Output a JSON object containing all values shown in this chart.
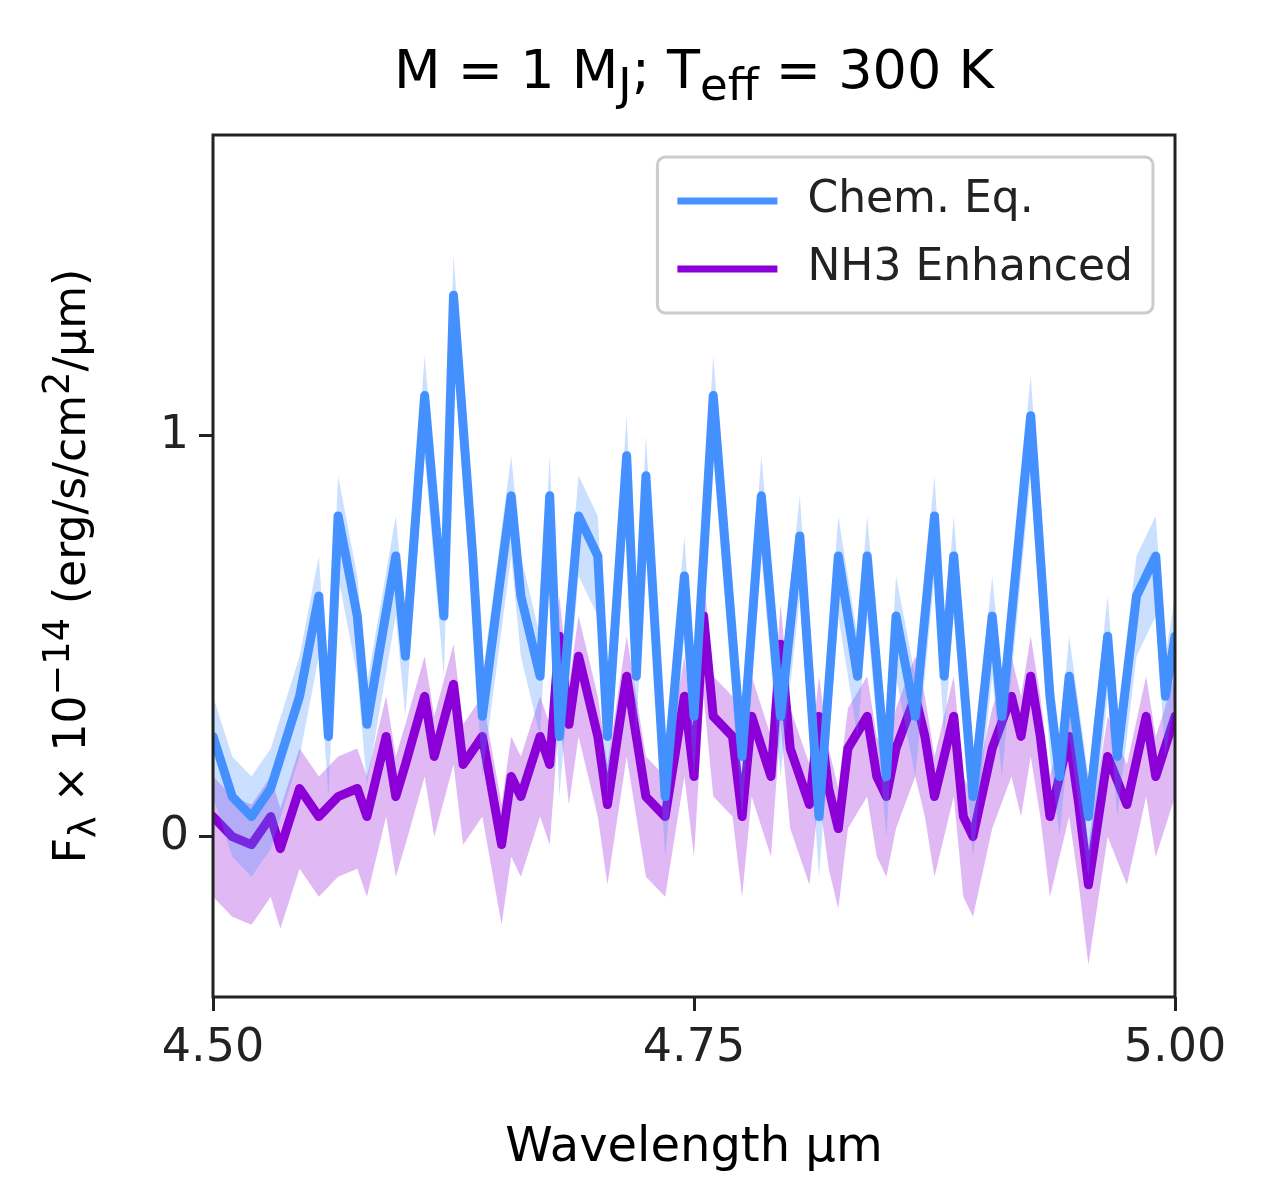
{
  "chart_data": {
    "type": "line",
    "title": "M = 1 M$_{J}$; T$_{eff}$ = 300 K",
    "xlabel": "Wavelength μm",
    "ylabel": "F$_{λ}$ × 10$^{−14}$ (erg/s/cm$^{2}$/μm)",
    "xlim": [
      4.5,
      5.0
    ],
    "xticks": [
      {
        "value": 4.5,
        "label": "4.50"
      },
      {
        "value": 4.75,
        "label": "4.75"
      },
      {
        "value": 5.0,
        "label": "5.00"
      }
    ],
    "ylim": [
      -0.4,
      1.75
    ],
    "yticks": [
      0,
      1
    ],
    "legend": "top right",
    "series": [
      {
        "name": "Chem. Eq.",
        "color": "#4591ff",
        "x": [
          4.5,
          4.51,
          4.52,
          4.53,
          4.545,
          4.555,
          4.56,
          4.565,
          4.575,
          4.58,
          4.595,
          4.6,
          4.61,
          4.62,
          4.625,
          4.635,
          4.64,
          4.655,
          4.66,
          4.67,
          4.675,
          4.68,
          4.69,
          4.7,
          4.705,
          4.715,
          4.72,
          4.725,
          4.735,
          4.745,
          4.75,
          4.76,
          4.775,
          4.785,
          4.795,
          4.805,
          4.815,
          4.825,
          4.835,
          4.84,
          4.85,
          4.855,
          4.865,
          4.875,
          4.88,
          4.885,
          4.895,
          4.905,
          4.91,
          4.925,
          4.935,
          4.94,
          4.945,
          4.955,
          4.965,
          4.97,
          4.98,
          4.99,
          4.995,
          5.0
        ],
        "values": [
          0.25,
          0.1,
          0.05,
          0.12,
          0.35,
          0.6,
          0.25,
          0.8,
          0.55,
          0.28,
          0.7,
          0.45,
          1.1,
          0.55,
          1.35,
          0.7,
          0.3,
          0.85,
          0.6,
          0.4,
          0.85,
          0.25,
          0.8,
          0.7,
          0.25,
          0.95,
          0.4,
          0.9,
          0.1,
          0.65,
          0.3,
          1.1,
          0.2,
          0.85,
          0.3,
          0.75,
          0.05,
          0.7,
          0.4,
          0.7,
          0.15,
          0.55,
          0.3,
          0.8,
          0.4,
          0.7,
          0.1,
          0.55,
          0.3,
          1.05,
          0.35,
          0.15,
          0.4,
          0.05,
          0.5,
          0.2,
          0.6,
          0.7,
          0.35,
          0.5
        ],
        "upper": [
          0.35,
          0.2,
          0.15,
          0.22,
          0.45,
          0.7,
          0.35,
          0.9,
          0.65,
          0.38,
          0.8,
          0.55,
          1.2,
          0.65,
          1.45,
          0.8,
          0.4,
          0.95,
          0.7,
          0.5,
          0.95,
          0.35,
          0.9,
          0.8,
          0.35,
          1.05,
          0.5,
          1.0,
          0.2,
          0.75,
          0.4,
          1.2,
          0.3,
          0.95,
          0.4,
          0.85,
          0.15,
          0.8,
          0.5,
          0.8,
          0.25,
          0.65,
          0.4,
          0.9,
          0.5,
          0.8,
          0.2,
          0.65,
          0.4,
          1.15,
          0.45,
          0.25,
          0.5,
          0.15,
          0.6,
          0.3,
          0.7,
          0.8,
          0.45,
          0.6
        ],
        "lower": [
          0.1,
          -0.05,
          -0.1,
          -0.03,
          0.2,
          0.45,
          0.1,
          0.65,
          0.4,
          0.13,
          0.55,
          0.3,
          0.95,
          0.4,
          1.2,
          0.55,
          0.15,
          0.7,
          0.45,
          0.25,
          0.7,
          0.1,
          0.65,
          0.55,
          0.1,
          0.8,
          0.25,
          0.75,
          -0.05,
          0.5,
          0.15,
          0.95,
          0.05,
          0.7,
          0.15,
          0.6,
          -0.1,
          0.55,
          0.25,
          0.55,
          0.0,
          0.4,
          0.15,
          0.65,
          0.25,
          0.55,
          -0.05,
          0.4,
          0.15,
          0.9,
          0.2,
          0.0,
          0.25,
          -0.1,
          0.35,
          0.05,
          0.45,
          0.55,
          0.2,
          0.35
        ]
      },
      {
        "name": "NH3 Enhanced",
        "color": "#8b00d6",
        "x": [
          4.5,
          4.51,
          4.52,
          4.53,
          4.535,
          4.545,
          4.555,
          4.565,
          4.575,
          4.58,
          4.59,
          4.595,
          4.6,
          4.61,
          4.615,
          4.625,
          4.63,
          4.64,
          4.65,
          4.655,
          4.66,
          4.67,
          4.675,
          4.68,
          4.685,
          4.69,
          4.7,
          4.705,
          4.715,
          4.72,
          4.725,
          4.735,
          4.745,
          4.75,
          4.755,
          4.76,
          4.77,
          4.775,
          4.78,
          4.79,
          4.795,
          4.8,
          4.81,
          4.815,
          4.82,
          4.825,
          4.83,
          4.84,
          4.845,
          4.85,
          4.855,
          4.865,
          4.87,
          4.875,
          4.885,
          4.89,
          4.895,
          4.905,
          4.915,
          4.92,
          4.925,
          4.93,
          4.935,
          4.945,
          4.95,
          4.955,
          4.965,
          4.975,
          4.985,
          4.99,
          5.0
        ],
        "values": [
          0.05,
          0.0,
          -0.02,
          0.05,
          -0.03,
          0.12,
          0.05,
          0.1,
          0.12,
          0.05,
          0.25,
          0.1,
          0.18,
          0.35,
          0.2,
          0.38,
          0.18,
          0.25,
          -0.02,
          0.15,
          0.1,
          0.25,
          0.18,
          0.5,
          0.28,
          0.45,
          0.25,
          0.08,
          0.4,
          0.25,
          0.1,
          0.05,
          0.35,
          0.15,
          0.55,
          0.3,
          0.25,
          0.05,
          0.3,
          0.15,
          0.48,
          0.22,
          0.08,
          0.3,
          0.12,
          0.02,
          0.22,
          0.3,
          0.15,
          0.1,
          0.22,
          0.35,
          0.25,
          0.1,
          0.3,
          0.05,
          0.0,
          0.22,
          0.35,
          0.25,
          0.4,
          0.25,
          0.05,
          0.25,
          0.08,
          -0.12,
          0.2,
          0.08,
          0.3,
          0.15,
          0.3
        ],
        "upper": [
          0.15,
          0.1,
          0.08,
          0.15,
          0.07,
          0.22,
          0.15,
          0.2,
          0.22,
          0.15,
          0.35,
          0.2,
          0.28,
          0.45,
          0.3,
          0.48,
          0.28,
          0.35,
          0.08,
          0.25,
          0.2,
          0.35,
          0.28,
          0.6,
          0.38,
          0.55,
          0.35,
          0.18,
          0.5,
          0.35,
          0.2,
          0.15,
          0.45,
          0.25,
          0.65,
          0.4,
          0.35,
          0.15,
          0.4,
          0.25,
          0.58,
          0.32,
          0.18,
          0.4,
          0.22,
          0.12,
          0.32,
          0.4,
          0.25,
          0.2,
          0.32,
          0.45,
          0.35,
          0.2,
          0.4,
          0.15,
          0.1,
          0.32,
          0.45,
          0.35,
          0.5,
          0.35,
          0.15,
          0.35,
          0.18,
          -0.02,
          0.3,
          0.18,
          0.4,
          0.25,
          0.4
        ],
        "lower": [
          -0.15,
          -0.2,
          -0.22,
          -0.15,
          -0.23,
          -0.08,
          -0.15,
          -0.1,
          -0.08,
          -0.15,
          0.05,
          -0.1,
          -0.02,
          0.15,
          0.0,
          0.18,
          -0.02,
          0.05,
          -0.22,
          -0.05,
          -0.1,
          0.05,
          -0.02,
          0.3,
          0.08,
          0.25,
          0.05,
          -0.12,
          0.2,
          0.05,
          -0.1,
          -0.15,
          0.15,
          -0.05,
          0.35,
          0.1,
          0.05,
          -0.15,
          0.1,
          -0.05,
          0.28,
          0.02,
          -0.12,
          0.1,
          -0.08,
          -0.18,
          0.02,
          0.1,
          -0.05,
          -0.1,
          0.02,
          0.15,
          0.05,
          -0.1,
          0.1,
          -0.15,
          -0.2,
          0.02,
          0.15,
          0.05,
          0.2,
          0.05,
          -0.15,
          0.05,
          -0.12,
          -0.32,
          0.0,
          -0.12,
          0.1,
          -0.05,
          0.1
        ]
      }
    ]
  }
}
